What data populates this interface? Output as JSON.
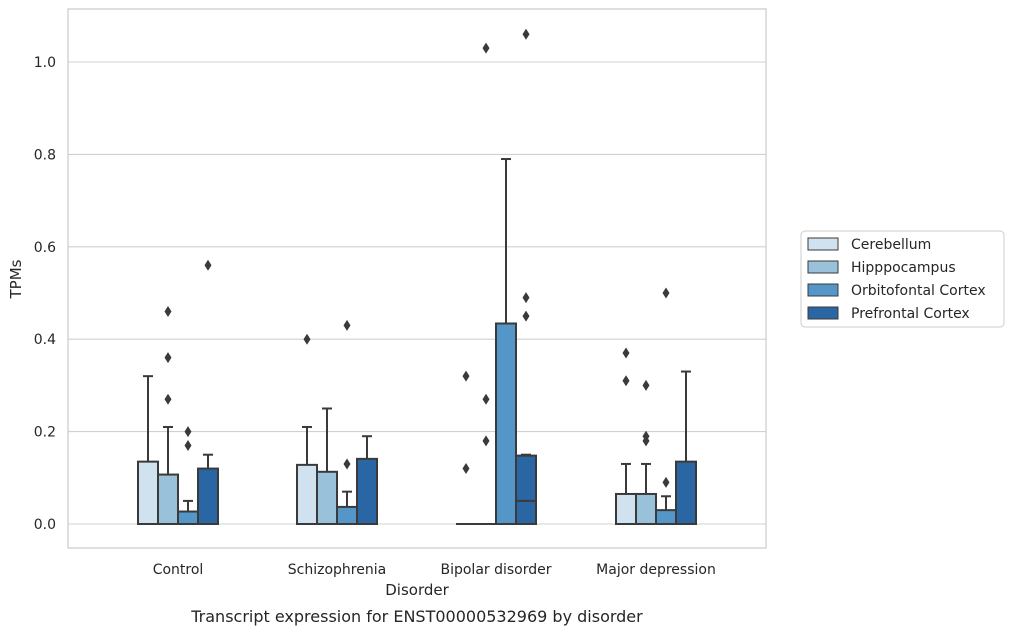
{
  "chart_data": {
    "type": "box",
    "caption": "Transcript expression for ENST00000532969 by disorder",
    "xlabel": "Disorder",
    "ylabel": "TPMs",
    "ylim": [
      -0.05,
      1.12
    ],
    "yticks": [
      0.0,
      0.2,
      0.4,
      0.6,
      0.8,
      1.0
    ],
    "ytick_labels": [
      "0.0",
      "0.2",
      "0.4",
      "0.6",
      "0.8",
      "1.0"
    ],
    "grid": "horizontal",
    "legend_position": "right",
    "categories": [
      "Control",
      "Schizophrenia",
      "Bipolar disorder",
      "Major depression"
    ],
    "series": [
      {
        "name": "Cerebellum",
        "color": "#d0e1f0",
        "boxes": [
          {
            "low": 0.0,
            "q1": 0.0,
            "median": 0.0,
            "q3": 0.135,
            "high": 0.32,
            "outliers": []
          },
          {
            "low": 0.0,
            "q1": 0.0,
            "median": 0.0,
            "q3": 0.128,
            "high": 0.21,
            "outliers": [
              0.4
            ]
          },
          {
            "low": 0.0,
            "q1": 0.0,
            "median": 0.0,
            "q3": 0.0,
            "high": 0.0,
            "outliers": [
              0.12,
              0.32
            ]
          },
          {
            "low": 0.0,
            "q1": 0.0,
            "median": 0.0,
            "q3": 0.065,
            "high": 0.13,
            "outliers": [
              0.31,
              0.37
            ]
          }
        ]
      },
      {
        "name": "Hipppocampus",
        "color": "#9ac1da",
        "boxes": [
          {
            "low": 0.0,
            "q1": 0.0,
            "median": 0.0,
            "q3": 0.107,
            "high": 0.21,
            "outliers": [
              0.27,
              0.36,
              0.46
            ]
          },
          {
            "low": 0.0,
            "q1": 0.0,
            "median": 0.0,
            "q3": 0.113,
            "high": 0.25,
            "outliers": []
          },
          {
            "low": 0.0,
            "q1": 0.0,
            "median": 0.0,
            "q3": 0.0,
            "high": 0.0,
            "outliers": [
              0.18,
              0.27,
              1.03
            ]
          },
          {
            "low": 0.0,
            "q1": 0.0,
            "median": 0.0,
            "q3": 0.065,
            "high": 0.13,
            "outliers": [
              0.18,
              0.19,
              0.3
            ]
          }
        ]
      },
      {
        "name": "Orbitofontal Cortex",
        "color": "#5596c8",
        "boxes": [
          {
            "low": 0.0,
            "q1": 0.0,
            "median": 0.0,
            "q3": 0.027,
            "high": 0.05,
            "outliers": [
              0.17,
              0.2
            ]
          },
          {
            "low": 0.0,
            "q1": 0.0,
            "median": 0.0,
            "q3": 0.037,
            "high": 0.07,
            "outliers": [
              0.13,
              0.43
            ]
          },
          {
            "low": 0.0,
            "q1": 0.0,
            "median": 0.0,
            "q3": 0.434,
            "high": 0.79,
            "outliers": []
          },
          {
            "low": 0.0,
            "q1": 0.0,
            "median": 0.0,
            "q3": 0.03,
            "high": 0.06,
            "outliers": [
              0.09,
              0.5
            ]
          }
        ]
      },
      {
        "name": "Prefrontal Cortex",
        "color": "#2b66a4",
        "boxes": [
          {
            "low": 0.0,
            "q1": 0.0,
            "median": 0.0,
            "q3": 0.12,
            "high": 0.15,
            "outliers": [
              0.56
            ]
          },
          {
            "low": 0.0,
            "q1": 0.0,
            "median": 0.0,
            "q3": 0.141,
            "high": 0.19,
            "outliers": []
          },
          {
            "low": 0.0,
            "q1": 0.0,
            "median": 0.05,
            "q3": 0.148,
            "high": 0.15,
            "outliers": [
              0.45,
              0.49,
              1.06
            ]
          },
          {
            "low": 0.0,
            "q1": 0.0,
            "median": 0.0,
            "q3": 0.135,
            "high": 0.33,
            "outliers": []
          }
        ]
      }
    ]
  }
}
